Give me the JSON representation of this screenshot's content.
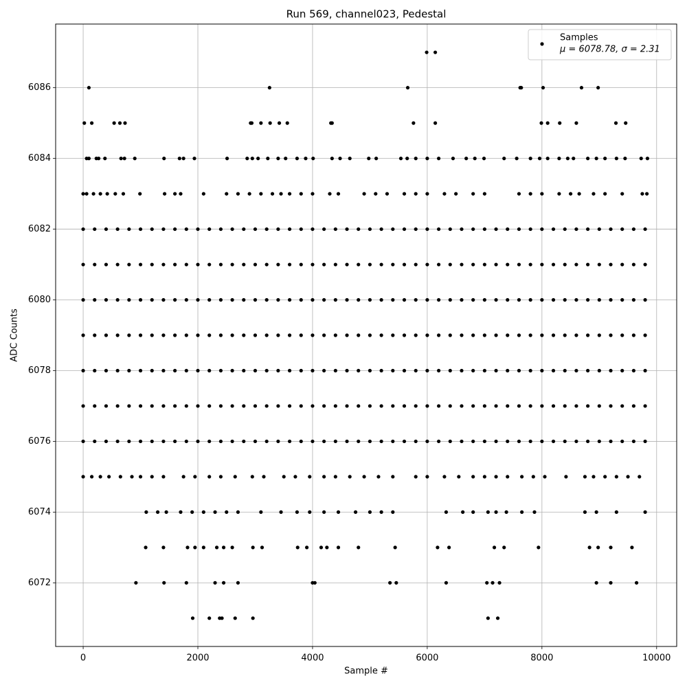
{
  "chart_data": {
    "type": "scatter",
    "title": "Run 569, channel023, Pedestal",
    "xlabel": "Sample #",
    "ylabel": "ADC Counts",
    "xlim": [
      -480,
      10350
    ],
    "ylim": [
      6070.2,
      6087.8
    ],
    "xticks": [
      0,
      2000,
      4000,
      6000,
      8000,
      10000
    ],
    "yticks": [
      6072,
      6074,
      6076,
      6078,
      6080,
      6082,
      6084,
      6086
    ],
    "grid": true,
    "legend": "upper right",
    "legend_text": "μ = 6078.78, σ = 2.31",
    "series": [
      {
        "name": "Samples",
        "color": "#000000",
        "x": [
          5990,
          6140,
          100,
          3250,
          5660,
          7620,
          7640,
          8020,
          8690,
          8980,
          20,
          150,
          540,
          640,
          730,
          2920,
          2940,
          3100,
          3260,
          3420,
          3560,
          4320,
          4340,
          5760,
          6140,
          7990,
          8100,
          8310,
          8600,
          9290,
          9460,
          60,
          100,
          230,
          270,
          380,
          660,
          720,
          900,
          1410,
          1680,
          1750,
          1940,
          2510,
          2860,
          2950,
          3050,
          3220,
          3400,
          3530,
          3730,
          3880,
          4010,
          4340,
          4480,
          4650,
          4980,
          5110,
          5540,
          5650,
          5800,
          6000,
          6200,
          6450,
          6680,
          6830,
          6990,
          7340,
          7560,
          7800,
          7960,
          8100,
          8300,
          8450,
          8550,
          8800,
          8950,
          9100,
          9300,
          9450,
          9730,
          9840,
          0,
          60,
          180,
          300,
          420,
          560,
          700,
          990,
          1420,
          1600,
          1700,
          2100,
          2500,
          2700,
          2900,
          3100,
          3300,
          3450,
          3600,
          3800,
          4000,
          4300,
          4450,
          4900,
          5100,
          5300,
          5600,
          5800,
          6000,
          6300,
          6500,
          6800,
          7000,
          7600,
          7800,
          8000,
          8300,
          8500,
          8650,
          8900,
          9100,
          9400,
          9750,
          9830,
          0,
          150,
          300,
          450,
          650,
          850,
          1000,
          1200,
          1400,
          1750,
          1950,
          2200,
          2400,
          2650,
          2950,
          3150,
          3500,
          3700,
          3950,
          4200,
          4400,
          4650,
          4900,
          5150,
          5400,
          5800,
          6000,
          6300,
          6550,
          6800,
          7000,
          7200,
          7400,
          7650,
          7850,
          8050,
          8420,
          8750,
          8900,
          9100,
          9300,
          9500,
          9700,
          1100,
          1300,
          1450,
          1700,
          1900,
          2100,
          2300,
          2500,
          2700,
          3100,
          3450,
          3730,
          3950,
          4200,
          4450,
          4750,
          5000,
          5200,
          5400,
          6330,
          6620,
          6800,
          7060,
          7200,
          7380,
          7650,
          7870,
          8750,
          8950,
          9300,
          9800,
          1090,
          1400,
          1820,
          1950,
          2100,
          2330,
          2450,
          2600,
          2960,
          3120,
          3740,
          3900,
          4150,
          4250,
          4450,
          4800,
          5440,
          6180,
          6380,
          7170,
          7340,
          7940,
          8830,
          8980,
          9200,
          9570,
          920,
          1410,
          1800,
          2300,
          2450,
          2700,
          4000,
          4040,
          5350,
          5460,
          6330,
          7040,
          7140,
          7260,
          8950,
          9200,
          9650,
          1910,
          2200,
          2380,
          2420,
          2650,
          2960,
          7060,
          7230,
          0,
          200,
          400,
          600,
          800,
          1000,
          1200,
          1400,
          1600,
          1800,
          2000,
          2200,
          2400,
          2600,
          2800,
          3000,
          3200,
          3400,
          3600,
          3800,
          4000,
          4200,
          4400,
          4600,
          4800,
          5000,
          5200,
          5400,
          5600,
          5800,
          6000,
          6200,
          6400,
          6600,
          6800,
          7000,
          7200,
          7400,
          7600,
          7800,
          8000,
          8200,
          8400,
          8600,
          8800,
          9000,
          9200,
          9400,
          9600,
          9800,
          0,
          200,
          400,
          600,
          800,
          1000,
          1200,
          1400,
          1600,
          1800,
          2000,
          2200,
          2400,
          2600,
          2800,
          3000,
          3200,
          3400,
          3600,
          3800,
          4000,
          4200,
          4400,
          4600,
          4800,
          5000,
          5200,
          5400,
          5600,
          5800,
          6000,
          6200,
          6400,
          6600,
          6800,
          7000,
          7200,
          7400,
          7600,
          7800,
          8000,
          8200,
          8400,
          8600,
          8800,
          9000,
          9200,
          9400,
          9600,
          9800,
          0,
          200,
          400,
          600,
          800,
          1000,
          1200,
          1400,
          1600,
          1800,
          2000,
          2200,
          2400,
          2600,
          2800,
          3000,
          3200,
          3400,
          3600,
          3800,
          4000,
          4200,
          4400,
          4600,
          4800,
          5000,
          5200,
          5400,
          5600,
          5800,
          6000,
          6200,
          6400,
          6600,
          6800,
          7000,
          7200,
          7400,
          7600,
          7800,
          8000,
          8200,
          8400,
          8600,
          8800,
          9000,
          9200,
          9400,
          9600,
          9800,
          0,
          200,
          400,
          600,
          800,
          1000,
          1200,
          1400,
          1600,
          1800,
          2000,
          2200,
          2400,
          2600,
          2800,
          3000,
          3200,
          3400,
          3600,
          3800,
          4000,
          4200,
          4400,
          4600,
          4800,
          5000,
          5200,
          5400,
          5600,
          5800,
          6000,
          6200,
          6400,
          6600,
          6800,
          7000,
          7200,
          7400,
          7600,
          7800,
          8000,
          8200,
          8400,
          8600,
          8800,
          9000,
          9200,
          9400,
          9600,
          9800,
          0,
          200,
          400,
          600,
          800,
          1000,
          1200,
          1400,
          1600,
          1800,
          2000,
          2200,
          2400,
          2600,
          2800,
          3000,
          3200,
          3400,
          3600,
          3800,
          4000,
          4200,
          4400,
          4600,
          4800,
          5000,
          5200,
          5400,
          5600,
          5800,
          6000,
          6200,
          6400,
          6600,
          6800,
          7000,
          7200,
          7400,
          7600,
          7800,
          8000,
          8200,
          8400,
          8600,
          8800,
          9000,
          9200,
          9400,
          9600,
          9800,
          0,
          200,
          400,
          600,
          800,
          1000,
          1200,
          1400,
          1600,
          1800,
          2000,
          2200,
          2400,
          2600,
          2800,
          3000,
          3200,
          3400,
          3600,
          3800,
          4000,
          4200,
          4400,
          4600,
          4800,
          5000,
          5200,
          5400,
          5600,
          5800,
          6000,
          6200,
          6400,
          6600,
          6800,
          7000,
          7200,
          7400,
          7600,
          7800,
          8000,
          8200,
          8400,
          8600,
          8800,
          9000,
          9200,
          9400,
          9600,
          9800,
          0,
          200,
          400,
          600,
          800,
          1000,
          1200,
          1400,
          1600,
          1800,
          2000,
          2200,
          2400,
          2600,
          2800,
          3000,
          3200,
          3400,
          3600,
          3800,
          4000,
          4200,
          4400,
          4600,
          4800,
          5000,
          5200,
          5400,
          5600,
          5800,
          6000,
          6200,
          6400,
          6600,
          6800,
          7000,
          7200,
          7400,
          7600,
          7800,
          8000,
          8200,
          8400,
          8600,
          8800,
          9000,
          9200,
          9400,
          9600,
          9800
        ],
        "y": [
          6087,
          6087,
          6086,
          6086,
          6086,
          6086,
          6086,
          6086,
          6086,
          6086,
          6085,
          6085,
          6085,
          6085,
          6085,
          6085,
          6085,
          6085,
          6085,
          6085,
          6085,
          6085,
          6085,
          6085,
          6085,
          6085,
          6085,
          6085,
          6085,
          6085,
          6085,
          6084,
          6084,
          6084,
          6084,
          6084,
          6084,
          6084,
          6084,
          6084,
          6084,
          6084,
          6084,
          6084,
          6084,
          6084,
          6084,
          6084,
          6084,
          6084,
          6084,
          6084,
          6084,
          6084,
          6084,
          6084,
          6084,
          6084,
          6084,
          6084,
          6084,
          6084,
          6084,
          6084,
          6084,
          6084,
          6084,
          6084,
          6084,
          6084,
          6084,
          6084,
          6084,
          6084,
          6084,
          6084,
          6084,
          6084,
          6084,
          6084,
          6084,
          6084,
          6083,
          6083,
          6083,
          6083,
          6083,
          6083,
          6083,
          6083,
          6083,
          6083,
          6083,
          6083,
          6083,
          6083,
          6083,
          6083,
          6083,
          6083,
          6083,
          6083,
          6083,
          6083,
          6083,
          6083,
          6083,
          6083,
          6083,
          6083,
          6083,
          6083,
          6083,
          6083,
          6083,
          6083,
          6083,
          6083,
          6083,
          6083,
          6083,
          6083,
          6083,
          6083,
          6083,
          6083,
          6075,
          6075,
          6075,
          6075,
          6075,
          6075,
          6075,
          6075,
          6075,
          6075,
          6075,
          6075,
          6075,
          6075,
          6075,
          6075,
          6075,
          6075,
          6075,
          6075,
          6075,
          6075,
          6075,
          6075,
          6075,
          6075,
          6075,
          6075,
          6075,
          6075,
          6075,
          6075,
          6075,
          6075,
          6075,
          6075,
          6075,
          6075,
          6075,
          6075,
          6075,
          6075,
          6075,
          6074,
          6074,
          6074,
          6074,
          6074,
          6074,
          6074,
          6074,
          6074,
          6074,
          6074,
          6074,
          6074,
          6074,
          6074,
          6074,
          6074,
          6074,
          6074,
          6074,
          6074,
          6074,
          6074,
          6074,
          6074,
          6074,
          6074,
          6074,
          6074,
          6074,
          6074,
          6073,
          6073,
          6073,
          6073,
          6073,
          6073,
          6073,
          6073,
          6073,
          6073,
          6073,
          6073,
          6073,
          6073,
          6073,
          6073,
          6073,
          6073,
          6073,
          6073,
          6073,
          6073,
          6073,
          6073,
          6073,
          6073,
          6072,
          6072,
          6072,
          6072,
          6072,
          6072,
          6072,
          6072,
          6072,
          6072,
          6072,
          6072,
          6072,
          6072,
          6072,
          6072,
          6072,
          6071,
          6071,
          6071,
          6071,
          6071,
          6071,
          6071,
          6071,
          6076,
          6076,
          6076,
          6076,
          6076,
          6076,
          6076,
          6076,
          6076,
          6076,
          6076,
          6076,
          6076,
          6076,
          6076,
          6076,
          6076,
          6076,
          6076,
          6076,
          6076,
          6076,
          6076,
          6076,
          6076,
          6076,
          6076,
          6076,
          6076,
          6076,
          6076,
          6076,
          6076,
          6076,
          6076,
          6076,
          6076,
          6076,
          6076,
          6076,
          6076,
          6076,
          6076,
          6076,
          6076,
          6076,
          6076,
          6076,
          6076,
          6076,
          6077,
          6077,
          6077,
          6077,
          6077,
          6077,
          6077,
          6077,
          6077,
          6077,
          6077,
          6077,
          6077,
          6077,
          6077,
          6077,
          6077,
          6077,
          6077,
          6077,
          6077,
          6077,
          6077,
          6077,
          6077,
          6077,
          6077,
          6077,
          6077,
          6077,
          6077,
          6077,
          6077,
          6077,
          6077,
          6077,
          6077,
          6077,
          6077,
          6077,
          6077,
          6077,
          6077,
          6077,
          6077,
          6077,
          6077,
          6077,
          6077,
          6077,
          6078,
          6078,
          6078,
          6078,
          6078,
          6078,
          6078,
          6078,
          6078,
          6078,
          6078,
          6078,
          6078,
          6078,
          6078,
          6078,
          6078,
          6078,
          6078,
          6078,
          6078,
          6078,
          6078,
          6078,
          6078,
          6078,
          6078,
          6078,
          6078,
          6078,
          6078,
          6078,
          6078,
          6078,
          6078,
          6078,
          6078,
          6078,
          6078,
          6078,
          6078,
          6078,
          6078,
          6078,
          6078,
          6078,
          6078,
          6078,
          6078,
          6078,
          6079,
          6079,
          6079,
          6079,
          6079,
          6079,
          6079,
          6079,
          6079,
          6079,
          6079,
          6079,
          6079,
          6079,
          6079,
          6079,
          6079,
          6079,
          6079,
          6079,
          6079,
          6079,
          6079,
          6079,
          6079,
          6079,
          6079,
          6079,
          6079,
          6079,
          6079,
          6079,
          6079,
          6079,
          6079,
          6079,
          6079,
          6079,
          6079,
          6079,
          6079,
          6079,
          6079,
          6079,
          6079,
          6079,
          6079,
          6079,
          6079,
          6079,
          6080,
          6080,
          6080,
          6080,
          6080,
          6080,
          6080,
          6080,
          6080,
          6080,
          6080,
          6080,
          6080,
          6080,
          6080,
          6080,
          6080,
          6080,
          6080,
          6080,
          6080,
          6080,
          6080,
          6080,
          6080,
          6080,
          6080,
          6080,
          6080,
          6080,
          6080,
          6080,
          6080,
          6080,
          6080,
          6080,
          6080,
          6080,
          6080,
          6080,
          6080,
          6080,
          6080,
          6080,
          6080,
          6080,
          6080,
          6080,
          6080,
          6080,
          6081,
          6081,
          6081,
          6081,
          6081,
          6081,
          6081,
          6081,
          6081,
          6081,
          6081,
          6081,
          6081,
          6081,
          6081,
          6081,
          6081,
          6081,
          6081,
          6081,
          6081,
          6081,
          6081,
          6081,
          6081,
          6081,
          6081,
          6081,
          6081,
          6081,
          6081,
          6081,
          6081,
          6081,
          6081,
          6081,
          6081,
          6081,
          6081,
          6081,
          6081,
          6081,
          6081,
          6081,
          6081,
          6081,
          6081,
          6081,
          6081,
          6081,
          6082,
          6082,
          6082,
          6082,
          6082,
          6082,
          6082,
          6082,
          6082,
          6082,
          6082,
          6082,
          6082,
          6082,
          6082,
          6082,
          6082,
          6082,
          6082,
          6082,
          6082,
          6082,
          6082,
          6082,
          6082,
          6082,
          6082,
          6082,
          6082,
          6082,
          6082,
          6082,
          6082,
          6082,
          6082,
          6082,
          6082,
          6082,
          6082,
          6082,
          6082,
          6082,
          6082,
          6082,
          6082,
          6082,
          6082,
          6082,
          6082,
          6082
        ]
      }
    ]
  }
}
